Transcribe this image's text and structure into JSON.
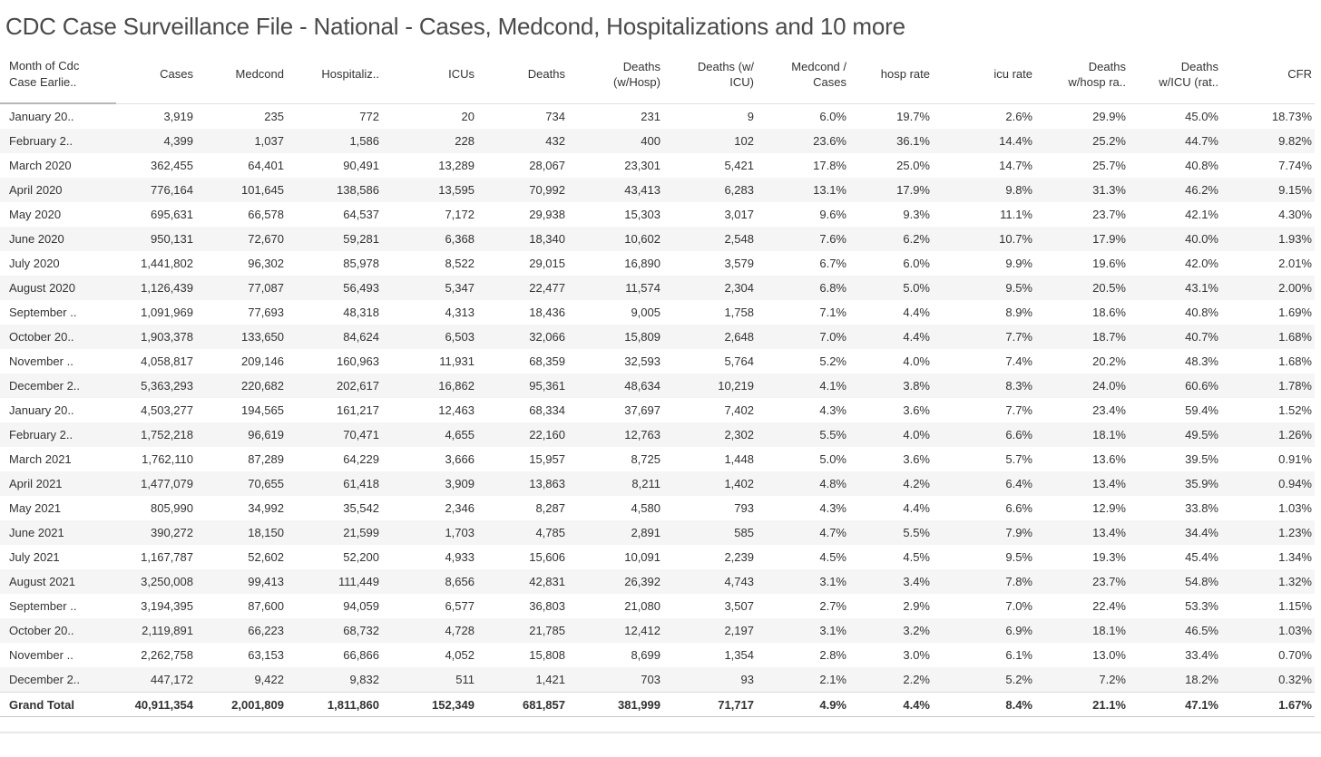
{
  "title": "CDC Case Surveillance File - National - Cases, Medcond, Hospitalizations and 10 more",
  "colors": {
    "row_band": "#f5f5f5",
    "text": "#333333",
    "title_text": "#4a4a4a"
  },
  "table": {
    "columns": [
      "Month of Cdc\nCase Earlie..",
      "Cases",
      "Medcond",
      "Hospitaliz..",
      "ICUs",
      "Deaths",
      "Deaths\n(w/Hosp)",
      "Deaths (w/\nICU)",
      "Medcond /\nCases",
      "hosp rate",
      "icu rate",
      "Deaths\nw/hosp ra..",
      "Deaths\nw/ICU (rat..",
      "CFR"
    ],
    "rows": [
      {
        "label": "January 20..",
        "values": [
          "3,919",
          "235",
          "772",
          "20",
          "734",
          "231",
          "9",
          "6.0%",
          "19.7%",
          "2.6%",
          "29.9%",
          "45.0%",
          "18.73%"
        ]
      },
      {
        "label": "February 2..",
        "values": [
          "4,399",
          "1,037",
          "1,586",
          "228",
          "432",
          "400",
          "102",
          "23.6%",
          "36.1%",
          "14.4%",
          "25.2%",
          "44.7%",
          "9.82%"
        ]
      },
      {
        "label": "March 2020",
        "values": [
          "362,455",
          "64,401",
          "90,491",
          "13,289",
          "28,067",
          "23,301",
          "5,421",
          "17.8%",
          "25.0%",
          "14.7%",
          "25.7%",
          "40.8%",
          "7.74%"
        ]
      },
      {
        "label": "April 2020",
        "values": [
          "776,164",
          "101,645",
          "138,586",
          "13,595",
          "70,992",
          "43,413",
          "6,283",
          "13.1%",
          "17.9%",
          "9.8%",
          "31.3%",
          "46.2%",
          "9.15%"
        ]
      },
      {
        "label": "May 2020",
        "values": [
          "695,631",
          "66,578",
          "64,537",
          "7,172",
          "29,938",
          "15,303",
          "3,017",
          "9.6%",
          "9.3%",
          "11.1%",
          "23.7%",
          "42.1%",
          "4.30%"
        ]
      },
      {
        "label": "June 2020",
        "values": [
          "950,131",
          "72,670",
          "59,281",
          "6,368",
          "18,340",
          "10,602",
          "2,548",
          "7.6%",
          "6.2%",
          "10.7%",
          "17.9%",
          "40.0%",
          "1.93%"
        ]
      },
      {
        "label": "July 2020",
        "values": [
          "1,441,802",
          "96,302",
          "85,978",
          "8,522",
          "29,015",
          "16,890",
          "3,579",
          "6.7%",
          "6.0%",
          "9.9%",
          "19.6%",
          "42.0%",
          "2.01%"
        ]
      },
      {
        "label": "August 2020",
        "values": [
          "1,126,439",
          "77,087",
          "56,493",
          "5,347",
          "22,477",
          "11,574",
          "2,304",
          "6.8%",
          "5.0%",
          "9.5%",
          "20.5%",
          "43.1%",
          "2.00%"
        ]
      },
      {
        "label": "September ..",
        "values": [
          "1,091,969",
          "77,693",
          "48,318",
          "4,313",
          "18,436",
          "9,005",
          "1,758",
          "7.1%",
          "4.4%",
          "8.9%",
          "18.6%",
          "40.8%",
          "1.69%"
        ]
      },
      {
        "label": "October 20..",
        "values": [
          "1,903,378",
          "133,650",
          "84,624",
          "6,503",
          "32,066",
          "15,809",
          "2,648",
          "7.0%",
          "4.4%",
          "7.7%",
          "18.7%",
          "40.7%",
          "1.68%"
        ]
      },
      {
        "label": "November ..",
        "values": [
          "4,058,817",
          "209,146",
          "160,963",
          "11,931",
          "68,359",
          "32,593",
          "5,764",
          "5.2%",
          "4.0%",
          "7.4%",
          "20.2%",
          "48.3%",
          "1.68%"
        ]
      },
      {
        "label": "December 2..",
        "values": [
          "5,363,293",
          "220,682",
          "202,617",
          "16,862",
          "95,361",
          "48,634",
          "10,219",
          "4.1%",
          "3.8%",
          "8.3%",
          "24.0%",
          "60.6%",
          "1.78%"
        ]
      },
      {
        "label": "January 20..",
        "values": [
          "4,503,277",
          "194,565",
          "161,217",
          "12,463",
          "68,334",
          "37,697",
          "7,402",
          "4.3%",
          "3.6%",
          "7.7%",
          "23.4%",
          "59.4%",
          "1.52%"
        ]
      },
      {
        "label": "February 2..",
        "values": [
          "1,752,218",
          "96,619",
          "70,471",
          "4,655",
          "22,160",
          "12,763",
          "2,302",
          "5.5%",
          "4.0%",
          "6.6%",
          "18.1%",
          "49.5%",
          "1.26%"
        ]
      },
      {
        "label": "March 2021",
        "values": [
          "1,762,110",
          "87,289",
          "64,229",
          "3,666",
          "15,957",
          "8,725",
          "1,448",
          "5.0%",
          "3.6%",
          "5.7%",
          "13.6%",
          "39.5%",
          "0.91%"
        ]
      },
      {
        "label": "April 2021",
        "values": [
          "1,477,079",
          "70,655",
          "61,418",
          "3,909",
          "13,863",
          "8,211",
          "1,402",
          "4.8%",
          "4.2%",
          "6.4%",
          "13.4%",
          "35.9%",
          "0.94%"
        ]
      },
      {
        "label": "May 2021",
        "values": [
          "805,990",
          "34,992",
          "35,542",
          "2,346",
          "8,287",
          "4,580",
          "793",
          "4.3%",
          "4.4%",
          "6.6%",
          "12.9%",
          "33.8%",
          "1.03%"
        ]
      },
      {
        "label": "June 2021",
        "values": [
          "390,272",
          "18,150",
          "21,599",
          "1,703",
          "4,785",
          "2,891",
          "585",
          "4.7%",
          "5.5%",
          "7.9%",
          "13.4%",
          "34.4%",
          "1.23%"
        ]
      },
      {
        "label": "July 2021",
        "values": [
          "1,167,787",
          "52,602",
          "52,200",
          "4,933",
          "15,606",
          "10,091",
          "2,239",
          "4.5%",
          "4.5%",
          "9.5%",
          "19.3%",
          "45.4%",
          "1.34%"
        ]
      },
      {
        "label": "August 2021",
        "values": [
          "3,250,008",
          "99,413",
          "111,449",
          "8,656",
          "42,831",
          "26,392",
          "4,743",
          "3.1%",
          "3.4%",
          "7.8%",
          "23.7%",
          "54.8%",
          "1.32%"
        ]
      },
      {
        "label": "September ..",
        "values": [
          "3,194,395",
          "87,600",
          "94,059",
          "6,577",
          "36,803",
          "21,080",
          "3,507",
          "2.7%",
          "2.9%",
          "7.0%",
          "22.4%",
          "53.3%",
          "1.15%"
        ]
      },
      {
        "label": "October 20..",
        "values": [
          "2,119,891",
          "66,223",
          "68,732",
          "4,728",
          "21,785",
          "12,412",
          "2,197",
          "3.1%",
          "3.2%",
          "6.9%",
          "18.1%",
          "46.5%",
          "1.03%"
        ]
      },
      {
        "label": "November ..",
        "values": [
          "2,262,758",
          "63,153",
          "66,866",
          "4,052",
          "15,808",
          "8,699",
          "1,354",
          "2.8%",
          "3.0%",
          "6.1%",
          "13.0%",
          "33.4%",
          "0.70%"
        ]
      },
      {
        "label": "December 2..",
        "values": [
          "447,172",
          "9,422",
          "9,832",
          "511",
          "1,421",
          "703",
          "93",
          "2.1%",
          "2.2%",
          "5.2%",
          "7.2%",
          "18.2%",
          "0.32%"
        ]
      }
    ],
    "grand_total": {
      "label": "Grand Total",
      "values": [
        "40,911,354",
        "2,001,809",
        "1,811,860",
        "152,349",
        "681,857",
        "381,999",
        "71,717",
        "4.9%",
        "4.4%",
        "8.4%",
        "21.1%",
        "47.1%",
        "1.67%"
      ]
    }
  }
}
